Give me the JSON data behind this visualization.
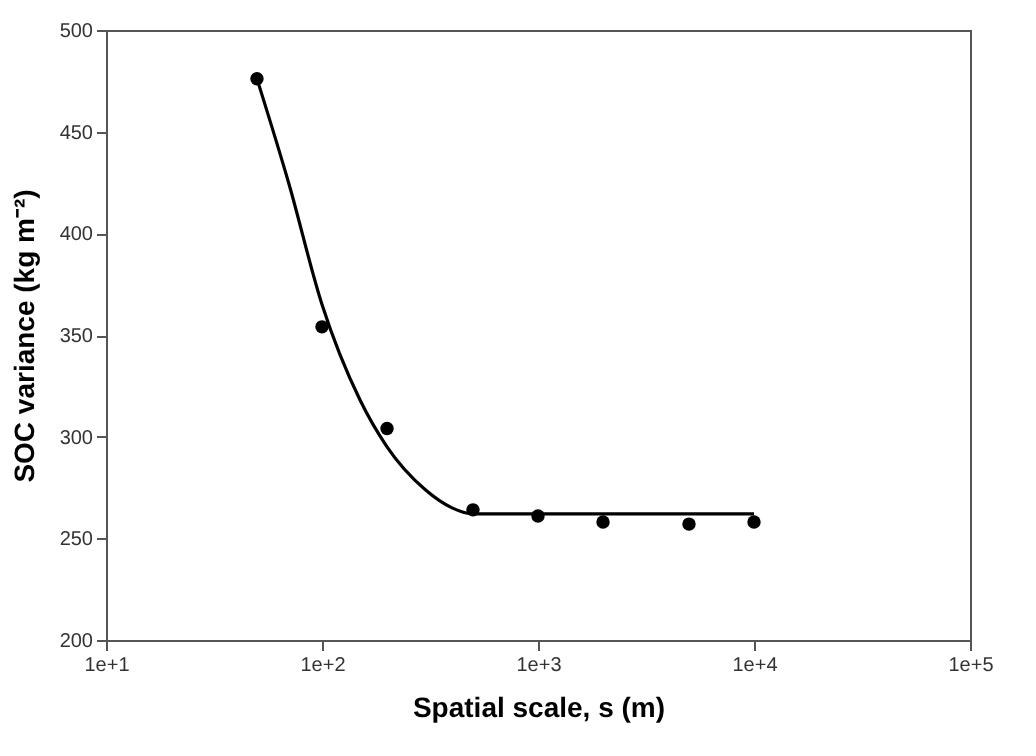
{
  "chart_data": {
    "type": "scatter",
    "xlabel": "Spatial scale, s (m)",
    "ylabel": "SOC variance (kg m⁻²)",
    "log": "x",
    "xlim": [
      10,
      100000
    ],
    "ylim": [
      200,
      500
    ],
    "xticks": [
      {
        "value": 10,
        "label": "1e+1"
      },
      {
        "value": 100,
        "label": "1e+2"
      },
      {
        "value": 1000,
        "label": "1e+3"
      },
      {
        "value": 10000,
        "label": "1e+4"
      },
      {
        "value": 100000,
        "label": "1e+5"
      }
    ],
    "yticks": [
      200,
      250,
      300,
      350,
      400,
      450,
      500
    ],
    "grid": false,
    "series": [
      {
        "color": "#000000",
        "marker": "circle",
        "x": [
          50,
          100,
          200,
          500,
          1000,
          2000,
          5000,
          10000
        ],
        "values": [
          476,
          354,
          304,
          264,
          261,
          258,
          257,
          258
        ]
      },
      {
        "type": "line",
        "color": "#000000",
        "marker": "none",
        "line_style": "solid",
        "x": [
          50,
          70,
          100,
          150,
          200,
          300,
          400,
          500,
          1000,
          10000
        ],
        "values": [
          476,
          425,
          365,
          318,
          295,
          274,
          265,
          262,
          262,
          262
        ]
      }
    ]
  }
}
